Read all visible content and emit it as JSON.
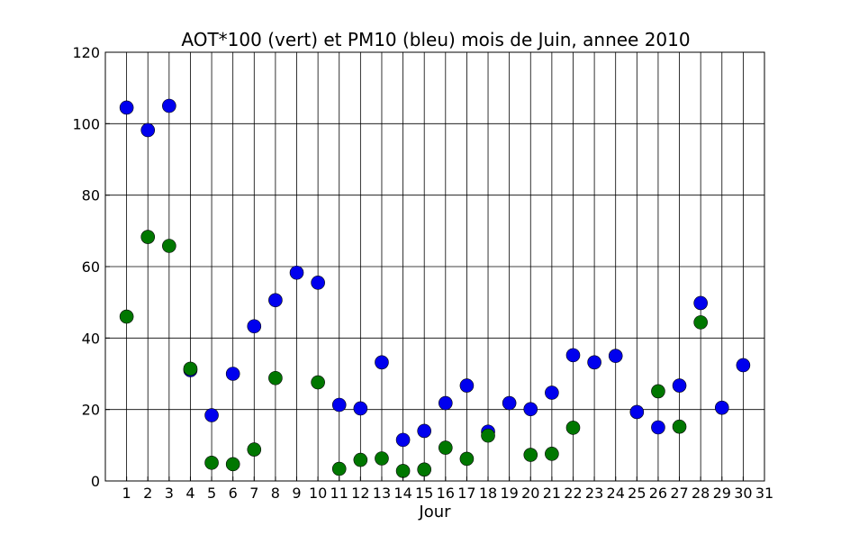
{
  "chart_data": {
    "type": "scatter",
    "title": "AOT*100 (vert) et PM10 (bleu) mois de Juin, annee 2010",
    "xlabel": "Jour",
    "ylabel": "",
    "xlim": [
      0,
      31
    ],
    "ylim": [
      0,
      120
    ],
    "x_ticks": [
      "1",
      "2",
      "3",
      "4",
      "5",
      "6",
      "7",
      "8",
      "9",
      "10",
      "11",
      "12",
      "13",
      "14",
      "15",
      "16",
      "17",
      "18",
      "19",
      "20",
      "21",
      "22",
      "23",
      "24",
      "25",
      "26",
      "27",
      "28",
      "29",
      "30",
      "31"
    ],
    "y_ticks": [
      "0",
      "20",
      "40",
      "60",
      "80",
      "100",
      "120"
    ],
    "grid": true,
    "series": [
      {
        "color": "#0000ee",
        "points": [
          [
            1,
            104.5
          ],
          [
            2,
            98.2
          ],
          [
            3,
            105
          ],
          [
            4,
            31
          ],
          [
            5,
            18.4
          ],
          [
            6,
            30
          ],
          [
            7,
            43.3
          ],
          [
            8,
            50.6
          ],
          [
            9,
            58.3
          ],
          [
            10,
            55.5
          ],
          [
            11,
            21.3
          ],
          [
            12,
            20.3
          ],
          [
            13,
            33.2
          ],
          [
            14,
            11.5
          ],
          [
            15,
            14
          ],
          [
            16,
            21.8
          ],
          [
            17,
            26.7
          ],
          [
            18,
            13.8
          ],
          [
            19,
            21.8
          ],
          [
            20,
            20.1
          ],
          [
            21,
            24.7
          ],
          [
            22,
            35.2
          ],
          [
            23,
            33.2
          ],
          [
            24,
            35
          ],
          [
            25,
            19.3
          ],
          [
            26,
            15
          ],
          [
            27,
            26.7
          ],
          [
            28,
            49.8
          ],
          [
            29,
            20.5
          ],
          [
            30,
            32.4
          ]
        ]
      },
      {
        "color": "#007700",
        "points": [
          [
            1,
            46
          ],
          [
            2,
            68.3
          ],
          [
            3,
            65.8
          ],
          [
            4,
            31.4
          ],
          [
            5,
            5.1
          ],
          [
            6,
            4.7
          ],
          [
            7,
            8.8
          ],
          [
            8,
            28.8
          ],
          [
            10,
            27.6
          ],
          [
            11,
            3.4
          ],
          [
            12,
            5.9
          ],
          [
            13,
            6.3
          ],
          [
            14,
            2.8
          ],
          [
            15,
            3.2
          ],
          [
            16,
            9.3
          ],
          [
            17,
            6.2
          ],
          [
            18,
            12.7
          ],
          [
            20,
            7.3
          ],
          [
            21,
            7.6
          ],
          [
            22,
            14.9
          ],
          [
            26,
            25.1
          ],
          [
            27,
            15.2
          ],
          [
            28,
            44.4
          ]
        ]
      }
    ]
  }
}
